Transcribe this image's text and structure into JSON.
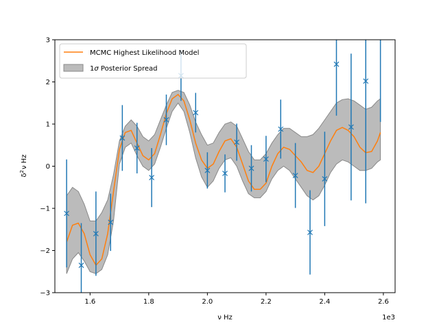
{
  "chart_data": {
    "type": "scatter",
    "xlabel": "ν Hz",
    "ylabel": "δ²ν Hz",
    "ylabel_parts": {
      "base": "δ",
      "sup": "2",
      "rest": "ν Hz"
    },
    "x_offset_label": "1e3",
    "xlim": [
      1.48,
      2.64
    ],
    "ylim": [
      -3,
      3
    ],
    "x_ticks": [
      1.6,
      1.8,
      2.0,
      2.2,
      2.4,
      2.6
    ],
    "x_tick_labels": [
      "1.6",
      "1.8",
      "2.0",
      "2.2",
      "2.4",
      "2.6"
    ],
    "y_ticks": [
      -3,
      -2,
      -1,
      0,
      1,
      2,
      3
    ],
    "y_tick_labels": [
      "−3",
      "−2",
      "−1",
      "0",
      "1",
      "2",
      "3"
    ],
    "grid": false,
    "legend_position": "top-left",
    "legend": [
      {
        "label": "MCMC Highest Likelihood Model",
        "kind": "line",
        "color": "#ff7f0e"
      },
      {
        "label": "1σ Posterior Spread",
        "label_base": "1",
        "label_symbol": "σ",
        "label_rest": " Posterior Spread",
        "kind": "band",
        "color": "#bbbbbb"
      }
    ],
    "colors": {
      "points": "#1f77b4",
      "model": "#ff7f0e",
      "band_fill": "#bbbbbb",
      "band_edge": "#888888"
    },
    "series": [
      {
        "name": "MCMC Highest Likelihood Model",
        "type": "line",
        "x": [
          1.52,
          1.54,
          1.56,
          1.58,
          1.6,
          1.62,
          1.64,
          1.66,
          1.68,
          1.7,
          1.72,
          1.74,
          1.76,
          1.78,
          1.8,
          1.82,
          1.84,
          1.86,
          1.88,
          1.9,
          1.92,
          1.94,
          1.96,
          1.98,
          2.0,
          2.02,
          2.04,
          2.06,
          2.08,
          2.1,
          2.12,
          2.14,
          2.16,
          2.18,
          2.2,
          2.22,
          2.24,
          2.26,
          2.28,
          2.3,
          2.32,
          2.34,
          2.36,
          2.38,
          2.4,
          2.42,
          2.44,
          2.46,
          2.48,
          2.5,
          2.52,
          2.54,
          2.56,
          2.58,
          2.59
        ],
        "y": [
          -1.8,
          -1.4,
          -1.35,
          -1.6,
          -2.1,
          -2.35,
          -2.2,
          -1.6,
          -0.6,
          0.4,
          0.8,
          0.85,
          0.55,
          0.25,
          0.15,
          0.3,
          0.75,
          1.25,
          1.6,
          1.7,
          1.55,
          1.1,
          0.55,
          0.15,
          -0.05,
          0.05,
          0.35,
          0.6,
          0.65,
          0.45,
          0.05,
          -0.35,
          -0.55,
          -0.55,
          -0.4,
          0.0,
          0.3,
          0.45,
          0.4,
          0.25,
          0.1,
          -0.1,
          -0.15,
          0.0,
          0.3,
          0.6,
          0.85,
          0.92,
          0.85,
          0.7,
          0.45,
          0.32,
          0.35,
          0.6,
          0.8
        ]
      },
      {
        "name": "1σ Posterior Spread",
        "type": "band",
        "x": [
          1.52,
          1.54,
          1.56,
          1.58,
          1.6,
          1.62,
          1.64,
          1.66,
          1.68,
          1.7,
          1.72,
          1.74,
          1.76,
          1.78,
          1.8,
          1.82,
          1.84,
          1.86,
          1.88,
          1.9,
          1.92,
          1.94,
          1.96,
          1.98,
          2.0,
          2.02,
          2.04,
          2.06,
          2.08,
          2.1,
          2.12,
          2.14,
          2.16,
          2.18,
          2.2,
          2.22,
          2.24,
          2.26,
          2.28,
          2.3,
          2.32,
          2.34,
          2.36,
          2.38,
          2.4,
          2.42,
          2.44,
          2.46,
          2.48,
          2.5,
          2.52,
          2.54,
          2.56,
          2.58,
          2.59
        ],
        "upper": [
          -0.7,
          -0.5,
          -0.6,
          -0.9,
          -1.3,
          -1.3,
          -1.1,
          -0.8,
          -0.2,
          0.6,
          0.95,
          1.1,
          0.95,
          0.7,
          0.6,
          0.75,
          1.1,
          1.45,
          1.75,
          1.8,
          1.75,
          1.45,
          1.05,
          0.75,
          0.5,
          0.55,
          0.8,
          1.0,
          1.05,
          0.95,
          0.65,
          0.35,
          0.15,
          0.15,
          0.3,
          0.55,
          0.75,
          0.9,
          0.9,
          0.8,
          0.7,
          0.7,
          0.75,
          0.9,
          1.1,
          1.3,
          1.5,
          1.58,
          1.6,
          1.55,
          1.45,
          1.35,
          1.4,
          1.55,
          1.6
        ],
        "lower": [
          -2.55,
          -2.2,
          -2.05,
          -2.25,
          -2.5,
          -2.55,
          -2.45,
          -2.1,
          -1.3,
          0.05,
          0.45,
          0.55,
          0.25,
          0.0,
          -0.1,
          0.05,
          0.45,
          0.9,
          1.3,
          1.5,
          1.3,
          0.8,
          0.2,
          -0.25,
          -0.5,
          -0.35,
          -0.05,
          0.15,
          0.2,
          0.0,
          -0.35,
          -0.65,
          -0.75,
          -0.75,
          -0.6,
          -0.3,
          -0.1,
          0.0,
          -0.1,
          -0.3,
          -0.5,
          -0.7,
          -0.8,
          -0.7,
          -0.45,
          -0.15,
          0.05,
          0.15,
          0.1,
          0.0,
          -0.1,
          -0.1,
          -0.05,
          0.1,
          0.15
        ]
      },
      {
        "name": "observations",
        "type": "errorbar",
        "points": [
          {
            "x": 1.52,
            "y": -1.12,
            "err": 1.28
          },
          {
            "x": 1.57,
            "y": -2.35,
            "err": 1.0
          },
          {
            "x": 1.62,
            "y": -1.6,
            "err": 1.0
          },
          {
            "x": 1.67,
            "y": -1.33,
            "err": 0.68
          },
          {
            "x": 1.71,
            "y": 0.67,
            "err": 0.78
          },
          {
            "x": 1.76,
            "y": 0.43,
            "err": 0.6
          },
          {
            "x": 1.81,
            "y": -0.27,
            "err": 0.7
          },
          {
            "x": 1.86,
            "y": 1.1,
            "err": 0.6
          },
          {
            "x": 1.91,
            "y": 2.15,
            "err": 0.6
          },
          {
            "x": 1.96,
            "y": 1.27,
            "err": 0.47
          },
          {
            "x": 2.0,
            "y": -0.1,
            "err": 0.43
          },
          {
            "x": 2.06,
            "y": -0.17,
            "err": 0.45
          },
          {
            "x": 2.1,
            "y": 0.57,
            "err": 0.44
          },
          {
            "x": 2.15,
            "y": -0.05,
            "err": 0.55
          },
          {
            "x": 2.2,
            "y": 0.17,
            "err": 0.55
          },
          {
            "x": 2.25,
            "y": 0.88,
            "err": 0.7
          },
          {
            "x": 2.3,
            "y": -0.22,
            "err": 0.77
          },
          {
            "x": 2.35,
            "y": -1.57,
            "err": 1.0
          },
          {
            "x": 2.4,
            "y": -0.3,
            "err": 1.12
          },
          {
            "x": 2.44,
            "y": 2.42,
            "err": 1.22
          },
          {
            "x": 2.49,
            "y": 0.93,
            "err": 1.74
          },
          {
            "x": 2.54,
            "y": 2.02,
            "err": 2.9
          },
          {
            "x": 2.59,
            "y": 3.3,
            "err": 2.25
          }
        ]
      }
    ]
  }
}
